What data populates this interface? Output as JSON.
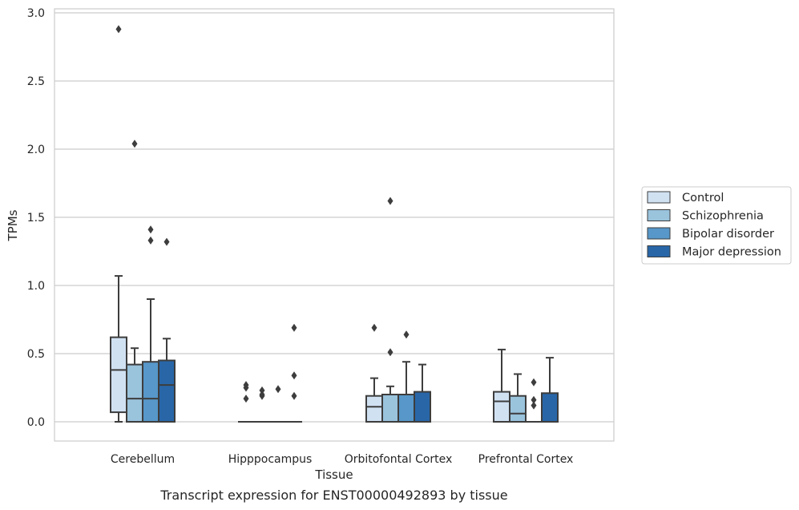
{
  "chart_data": {
    "type": "box",
    "title": "",
    "caption": "Transcript expression for ENST00000492893 by tissue",
    "xlabel": "Tissue",
    "ylabel": "TPMs",
    "ylim": [
      -0.14,
      3.04
    ],
    "yticks": [
      "0.0",
      "0.5",
      "1.0",
      "1.5",
      "2.0",
      "2.5",
      "3.0"
    ],
    "grid": "horizontal",
    "legend_position": "right",
    "categories": [
      "Cerebellum",
      "Hipppocampus",
      "Orbitofontal Cortex",
      "Prefrontal Cortex"
    ],
    "series": [
      {
        "name": "Control",
        "color": "#d0e1f2",
        "boxes": [
          {
            "whislo": 0.0,
            "q1": 0.07,
            "med": 0.38,
            "q3": 0.62,
            "whishi": 1.07,
            "fliers": [
              2.88
            ]
          },
          {
            "whislo": 0.0,
            "q1": 0.0,
            "med": 0.0,
            "q3": 0.0,
            "whishi": 0.0,
            "fliers": [
              0.17,
              0.25,
              0.27
            ]
          },
          {
            "whislo": 0.0,
            "q1": 0.0,
            "med": 0.11,
            "q3": 0.19,
            "whishi": 0.32,
            "fliers": [
              0.69
            ]
          },
          {
            "whislo": 0.0,
            "q1": 0.0,
            "med": 0.15,
            "q3": 0.22,
            "whishi": 0.53,
            "fliers": []
          }
        ]
      },
      {
        "name": "Schizophrenia",
        "color": "#9ac3dc",
        "boxes": [
          {
            "whislo": 0.0,
            "q1": 0.0,
            "med": 0.17,
            "q3": 0.42,
            "whishi": 0.54,
            "fliers": [
              2.04
            ]
          },
          {
            "whislo": 0.0,
            "q1": 0.0,
            "med": 0.0,
            "q3": 0.0,
            "whishi": 0.0,
            "fliers": [
              0.19,
              0.2,
              0.23
            ]
          },
          {
            "whislo": 0.0,
            "q1": 0.0,
            "med": 0.0,
            "q3": 0.2,
            "whishi": 0.26,
            "fliers": [
              0.51,
              1.62
            ]
          },
          {
            "whislo": 0.0,
            "q1": 0.0,
            "med": 0.06,
            "q3": 0.19,
            "whishi": 0.35,
            "fliers": []
          }
        ]
      },
      {
        "name": "Bipolar disorder",
        "color": "#5797c9",
        "boxes": [
          {
            "whislo": 0.0,
            "q1": 0.0,
            "med": 0.17,
            "q3": 0.44,
            "whishi": 0.9,
            "fliers": [
              1.33,
              1.41
            ]
          },
          {
            "whislo": 0.0,
            "q1": 0.0,
            "med": 0.0,
            "q3": 0.0,
            "whishi": 0.0,
            "fliers": [
              0.24
            ]
          },
          {
            "whislo": 0.0,
            "q1": 0.0,
            "med": 0.0,
            "q3": 0.2,
            "whishi": 0.44,
            "fliers": [
              0.64
            ]
          },
          {
            "whislo": 0.0,
            "q1": 0.0,
            "med": 0.0,
            "q3": 0.0,
            "whishi": 0.0,
            "fliers": [
              0.12,
              0.16,
              0.29
            ]
          }
        ]
      },
      {
        "name": "Major depression",
        "color": "#2866a8",
        "boxes": [
          {
            "whislo": 0.0,
            "q1": 0.0,
            "med": 0.27,
            "q3": 0.45,
            "whishi": 0.61,
            "fliers": [
              1.32
            ]
          },
          {
            "whislo": 0.0,
            "q1": 0.0,
            "med": 0.0,
            "q3": 0.0,
            "whishi": 0.0,
            "fliers": [
              0.19,
              0.34,
              0.69
            ]
          },
          {
            "whislo": 0.0,
            "q1": 0.0,
            "med": 0.0,
            "q3": 0.22,
            "whishi": 0.42,
            "fliers": []
          },
          {
            "whislo": 0.0,
            "q1": 0.0,
            "med": 0.0,
            "q3": 0.21,
            "whishi": 0.47,
            "fliers": []
          }
        ]
      }
    ]
  }
}
